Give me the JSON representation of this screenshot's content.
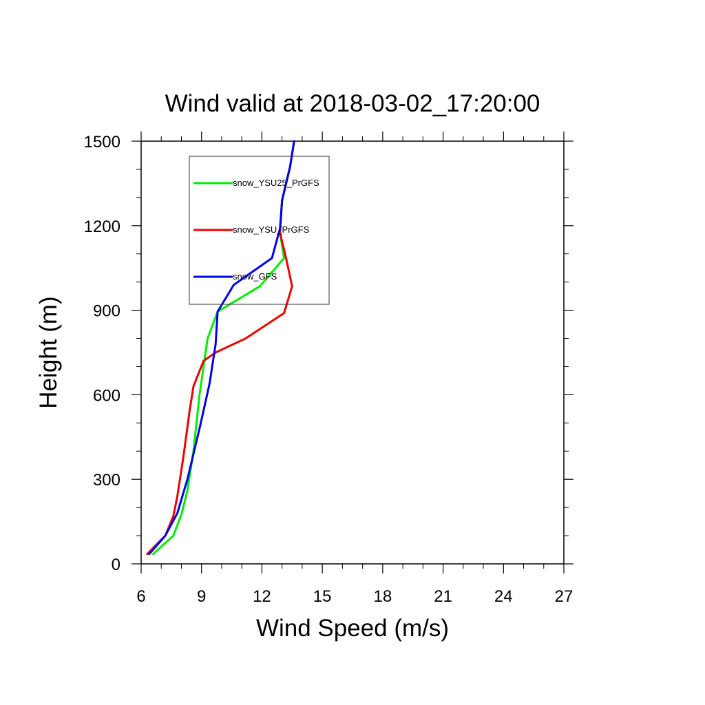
{
  "chart_data": {
    "type": "line",
    "title": "Wind valid at 2018-03-02_17:20:00",
    "xlabel": "Wind Speed (m/s)",
    "ylabel": "Height (m)",
    "xlim": [
      6,
      27
    ],
    "ylim": [
      0,
      1500
    ],
    "xticks": [
      6,
      9,
      12,
      15,
      18,
      21,
      24,
      27
    ],
    "yticks": [
      0,
      300,
      600,
      900,
      1200,
      1500
    ],
    "xminor_step": 1,
    "yminor_step": 100,
    "grid": false,
    "legend_position": "top-left",
    "series": [
      {
        "name": "snow_YSU25_PrGFS",
        "color": "#00ee00",
        "points": [
          [
            6.6,
            35
          ],
          [
            7.6,
            100
          ],
          [
            8.0,
            175
          ],
          [
            8.3,
            260
          ],
          [
            8.6,
            400
          ],
          [
            8.9,
            600
          ],
          [
            9.3,
            800
          ],
          [
            9.8,
            895
          ],
          [
            11.9,
            985
          ],
          [
            13.1,
            1085
          ],
          [
            12.9,
            1175
          ],
          [
            13.0,
            1290
          ],
          [
            13.4,
            1410
          ],
          [
            13.6,
            1500
          ]
        ]
      },
      {
        "name": "snow_YSU_PrGFS",
        "color": "#ee0000",
        "points": [
          [
            6.3,
            35
          ],
          [
            7.2,
            100
          ],
          [
            7.6,
            170
          ],
          [
            7.8,
            240
          ],
          [
            8.1,
            380
          ],
          [
            8.4,
            540
          ],
          [
            8.6,
            630
          ],
          [
            9.1,
            720
          ],
          [
            9.7,
            750
          ],
          [
            11.2,
            800
          ],
          [
            13.1,
            890
          ],
          [
            13.5,
            985
          ],
          [
            13.2,
            1085
          ],
          [
            12.9,
            1175
          ],
          [
            13.0,
            1290
          ],
          [
            13.4,
            1410
          ],
          [
            13.6,
            1500
          ]
        ]
      },
      {
        "name": "snow_GFS",
        "color": "#0000ee",
        "points": [
          [
            6.4,
            35
          ],
          [
            7.2,
            100
          ],
          [
            7.8,
            180
          ],
          [
            8.3,
            300
          ],
          [
            8.9,
            480
          ],
          [
            9.4,
            640
          ],
          [
            9.7,
            780
          ],
          [
            9.8,
            895
          ],
          [
            10.6,
            990
          ],
          [
            12.5,
            1085
          ],
          [
            12.9,
            1190
          ],
          [
            13.0,
            1290
          ],
          [
            13.4,
            1410
          ],
          [
            13.6,
            1500
          ]
        ]
      }
    ]
  }
}
